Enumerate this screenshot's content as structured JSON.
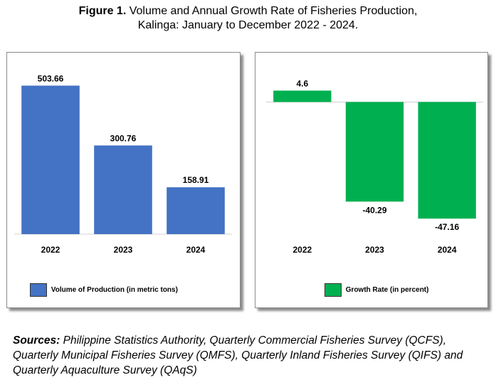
{
  "figure": {
    "label": "Figure 1.",
    "title_line1": "Volume and Annual Growth Rate of Fisheries Production,",
    "title_line2": "Kalinga: January to December 2022 - 2024."
  },
  "chart_data": [
    {
      "type": "bar",
      "categories": [
        "2022",
        "2023",
        "2024"
      ],
      "series": [
        {
          "name": "Volume of Production (in metric tons)",
          "values": [
            503.66,
            300.76,
            158.91
          ]
        }
      ],
      "data_labels": [
        "503.66",
        "300.76",
        "158.91"
      ],
      "ylim": [
        0,
        560
      ],
      "grid": false,
      "legend": "bottom-left",
      "color": "#4472C4"
    },
    {
      "type": "bar",
      "categories": [
        "2022",
        "2023",
        "2024"
      ],
      "series": [
        {
          "name": "Growth Rate (in percent)",
          "values": [
            4.6,
            -40.29,
            -47.16
          ]
        }
      ],
      "data_labels": [
        "4.6",
        "-40.29",
        "-47.16"
      ],
      "ylim": [
        -52,
        7
      ],
      "grid": false,
      "legend": "bottom-center",
      "color": "#00B050"
    }
  ],
  "sources": {
    "label": "Sources:",
    "text": "Philippine Statistics Authority, Quarterly Commercial Fisheries Survey (QCFS), Quarterly Municipal Fisheries Survey (QMFS), Quarterly Inland Fisheries Survey (QIFS) and Quarterly Aquaculture Survey (QAqS)"
  }
}
